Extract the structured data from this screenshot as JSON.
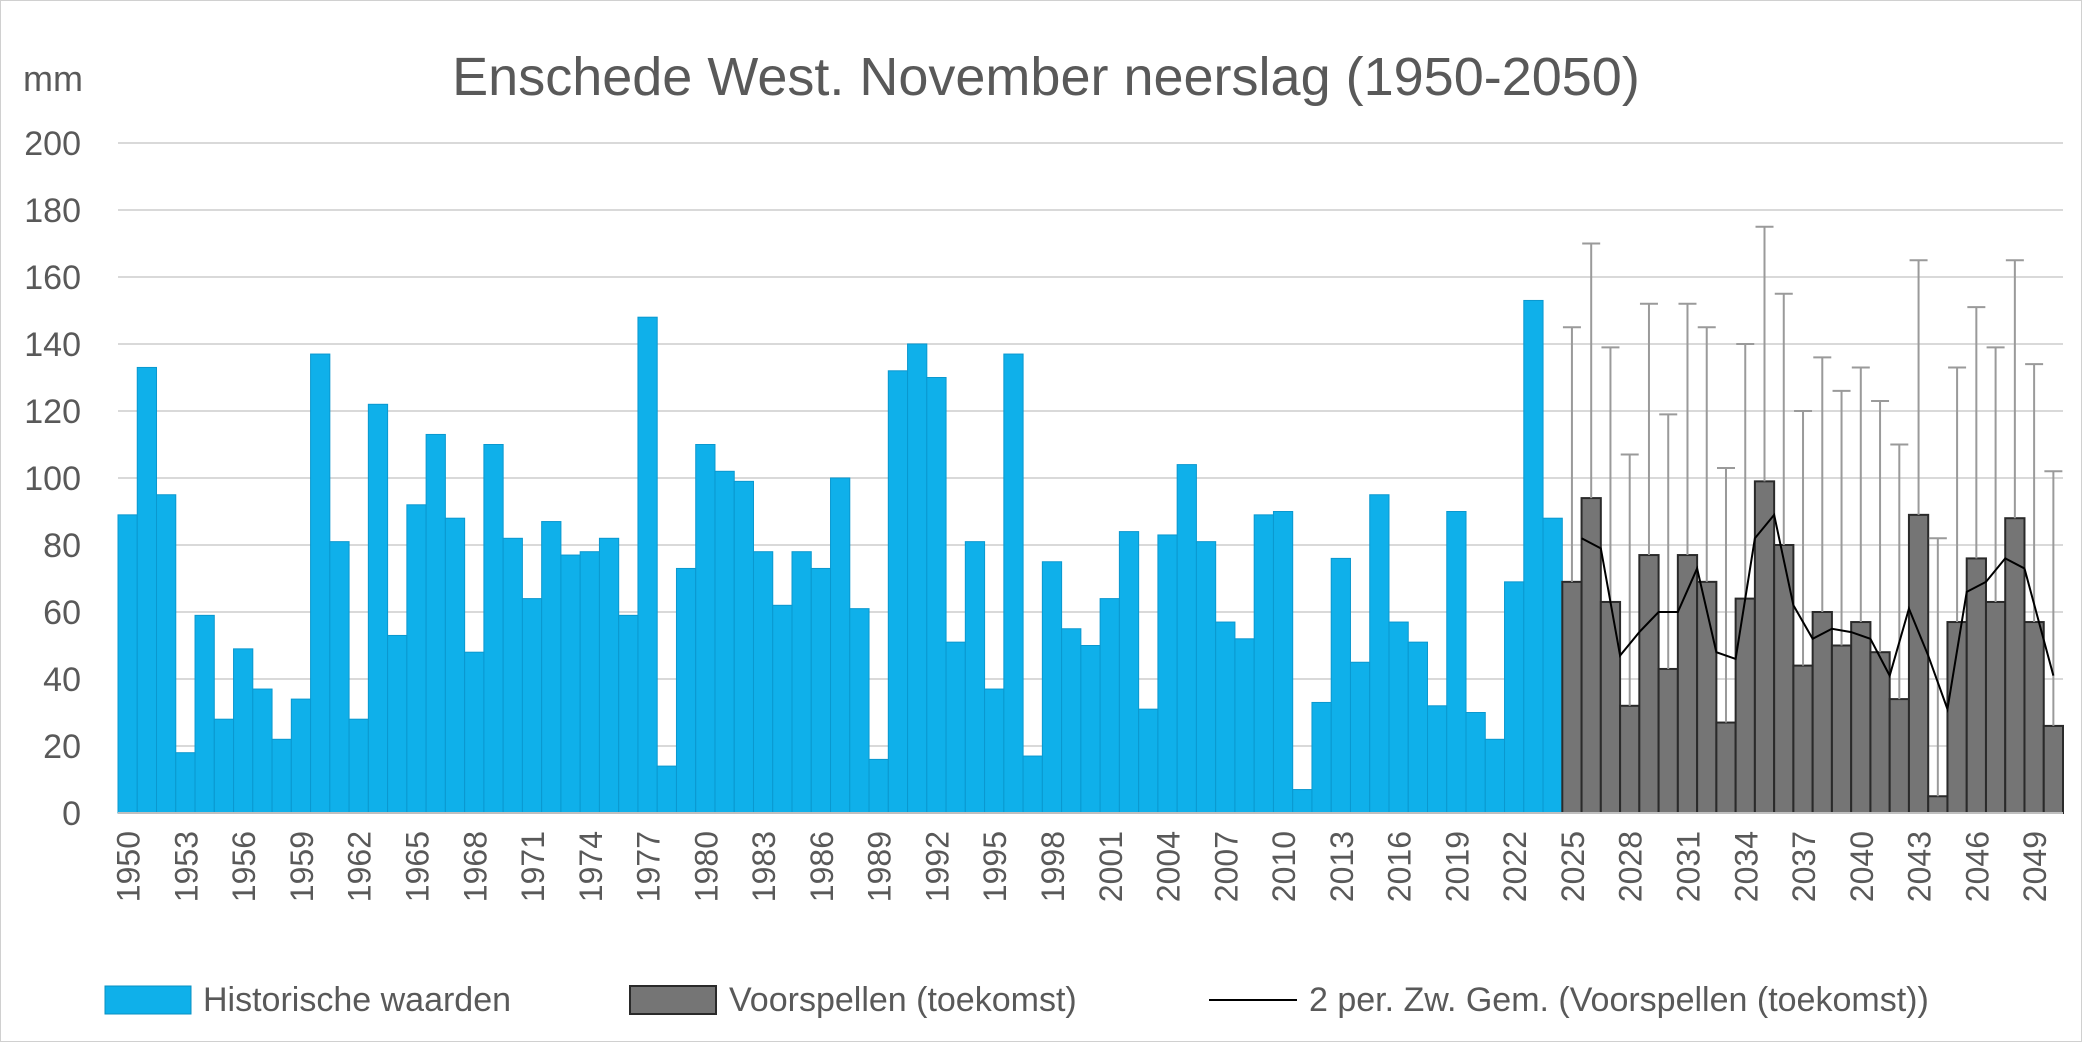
{
  "chart_data": {
    "type": "bar",
    "title": "Enschede West. November neerslag (1950-2050)",
    "ylabel": "mm",
    "xlabel": "",
    "ylim": [
      0,
      200
    ],
    "yticks": [
      0,
      20,
      40,
      60,
      80,
      100,
      120,
      140,
      160,
      180,
      200
    ],
    "grid": true,
    "legend_position": "bottom",
    "x_tick_labels": [
      "1950",
      "1953",
      "1956",
      "1959",
      "1962",
      "1965",
      "1968",
      "1971",
      "1974",
      "1977",
      "1980",
      "1983",
      "1986",
      "1989",
      "1992",
      "1995",
      "1998",
      "2001",
      "2004",
      "2007",
      "2010",
      "2013",
      "2016",
      "2019",
      "2022",
      "2025",
      "2028",
      "2031",
      "2034",
      "2037",
      "2040",
      "2043",
      "2046",
      "2049"
    ],
    "colors": {
      "historical": "#0fb0ea",
      "forecast": "#757575",
      "forecast_edge": "#2a2a2a",
      "moving_average": "#000000",
      "error_bar": "#9a9a9a",
      "grid": "#d9d9d9",
      "text": "#595959"
    },
    "series": [
      {
        "name": "Historische waarden",
        "kind": "bar",
        "x": [
          1950,
          1951,
          1952,
          1953,
          1954,
          1955,
          1956,
          1957,
          1958,
          1959,
          1960,
          1961,
          1962,
          1963,
          1964,
          1965,
          1966,
          1967,
          1968,
          1969,
          1970,
          1971,
          1972,
          1973,
          1974,
          1975,
          1976,
          1977,
          1978,
          1979,
          1980,
          1981,
          1982,
          1983,
          1984,
          1985,
          1986,
          1987,
          1988,
          1989,
          1990,
          1991,
          1992,
          1993,
          1994,
          1995,
          1996,
          1997,
          1998,
          1999,
          2000,
          2001,
          2002,
          2003,
          2004,
          2005,
          2006,
          2007,
          2008,
          2009,
          2010,
          2011,
          2012,
          2013,
          2014,
          2015,
          2016,
          2017,
          2018,
          2019,
          2020,
          2021,
          2022,
          2023,
          2024
        ],
        "values": [
          89,
          133,
          95,
          18,
          59,
          28,
          49,
          37,
          22,
          34,
          137,
          81,
          28,
          122,
          53,
          92,
          113,
          88,
          48,
          110,
          82,
          64,
          87,
          77,
          78,
          82,
          59,
          148,
          14,
          73,
          110,
          102,
          99,
          78,
          62,
          78,
          73,
          100,
          61,
          16,
          132,
          140,
          130,
          51,
          81,
          37,
          137,
          17,
          75,
          55,
          50,
          64,
          84,
          31,
          83,
          104,
          81,
          57,
          52,
          89,
          90,
          7,
          33,
          76,
          45,
          95,
          57,
          51,
          32,
          90,
          30,
          22,
          69,
          153,
          88
        ]
      },
      {
        "name": "Voorspellen (toekomst)",
        "kind": "bar",
        "x": [
          2025,
          2026,
          2027,
          2028,
          2029,
          2030,
          2031,
          2032,
          2033,
          2034,
          2035,
          2036,
          2037,
          2038,
          2039,
          2040,
          2041,
          2042,
          2043,
          2044,
          2045,
          2046,
          2047,
          2048,
          2049,
          2050
        ],
        "values": [
          69,
          94,
          63,
          32,
          77,
          43,
          77,
          69,
          27,
          64,
          99,
          80,
          44,
          60,
          50,
          57,
          48,
          34,
          89,
          5,
          57,
          76,
          63,
          88,
          57,
          26
        ],
        "error_upper": [
          145,
          170,
          139,
          107,
          152,
          119,
          152,
          145,
          103,
          140,
          175,
          155,
          120,
          136,
          126,
          133,
          123,
          110,
          165,
          82,
          133,
          151,
          139,
          165,
          134,
          102
        ]
      },
      {
        "name": "2 per. Zw. Gem. (Voorspellen (toekomst))",
        "kind": "line",
        "x": [
          2026,
          2027,
          2028,
          2029,
          2030,
          2031,
          2032,
          2033,
          2034,
          2035,
          2036,
          2037,
          2038,
          2039,
          2040,
          2041,
          2042,
          2043,
          2044,
          2045,
          2046,
          2047,
          2048,
          2049,
          2050
        ],
        "values": [
          82,
          79,
          47,
          54,
          60,
          60,
          73,
          48,
          46,
          82,
          89,
          62,
          52,
          55,
          54,
          52,
          41,
          61,
          47,
          31,
          66,
          69,
          76,
          73,
          41
        ]
      }
    ]
  }
}
